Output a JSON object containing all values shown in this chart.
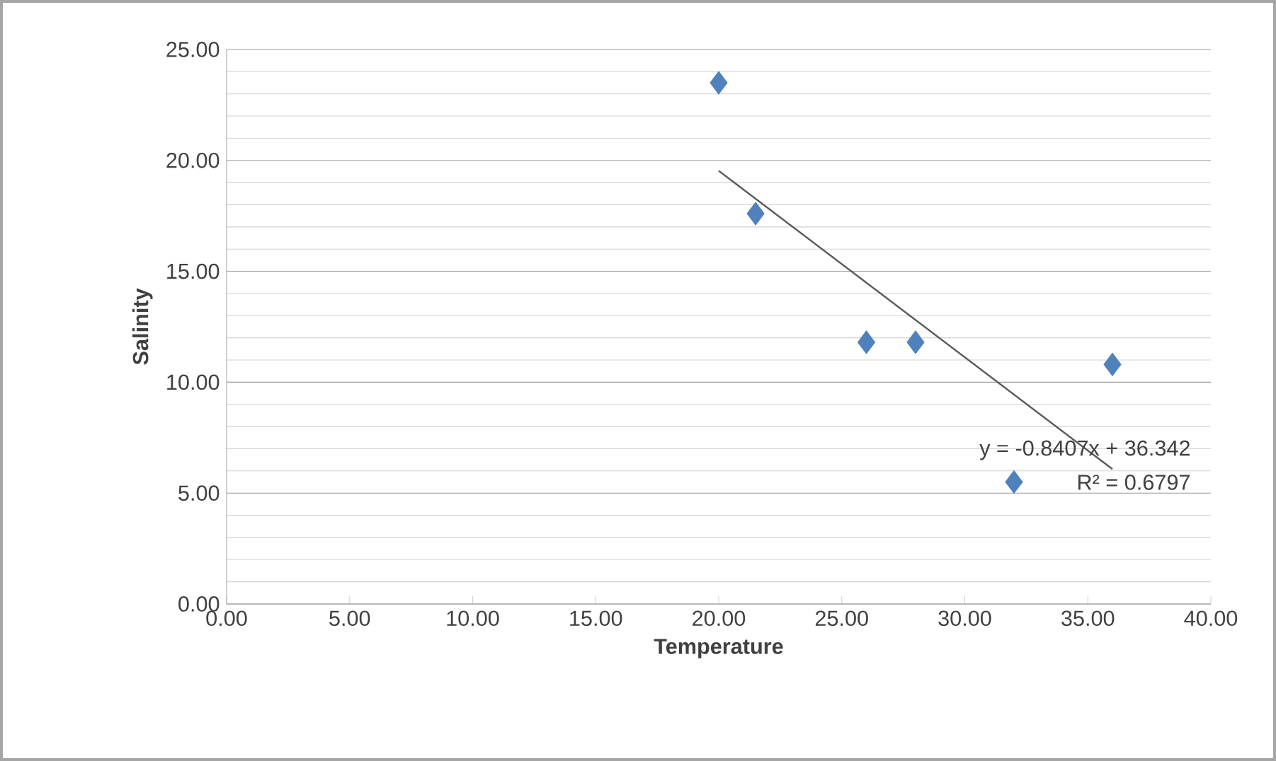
{
  "chart_data": {
    "type": "scatter",
    "xlabel": "Temperature",
    "ylabel": "Salinity",
    "xlim": [
      0,
      40
    ],
    "ylim": [
      0,
      25
    ],
    "xticks": [
      {
        "value": 0,
        "label": "0.00"
      },
      {
        "value": 5,
        "label": "5.00"
      },
      {
        "value": 10,
        "label": "10.00"
      },
      {
        "value": 15,
        "label": "15.00"
      },
      {
        "value": 20,
        "label": "20.00"
      },
      {
        "value": 25,
        "label": "25.00"
      },
      {
        "value": 30,
        "label": "30.00"
      },
      {
        "value": 35,
        "label": "35.00"
      },
      {
        "value": 40,
        "label": "40.00"
      }
    ],
    "yticks": [
      {
        "value": 0,
        "label": "0.00"
      },
      {
        "value": 5,
        "label": "5.00"
      },
      {
        "value": 10,
        "label": "10.00"
      },
      {
        "value": 15,
        "label": "15.00"
      },
      {
        "value": 20,
        "label": "20.00"
      },
      {
        "value": 25,
        "label": "25.00"
      }
    ],
    "grid": "y",
    "marker": "diamond",
    "series": [
      {
        "color": "#4f81bd",
        "x": [
          20,
          21.5,
          26,
          28,
          32,
          36
        ],
        "values": [
          23.5,
          17.6,
          11.8,
          11.8,
          5.5,
          10.8
        ]
      },
      {
        "type": "line",
        "marker": "none",
        "color": "#595959",
        "x": [
          20,
          36
        ],
        "values": [
          19.53,
          6.08
        ]
      }
    ],
    "annotations": [
      "y = -0.8407x + 36.342",
      "R² = 0.6797"
    ]
  }
}
